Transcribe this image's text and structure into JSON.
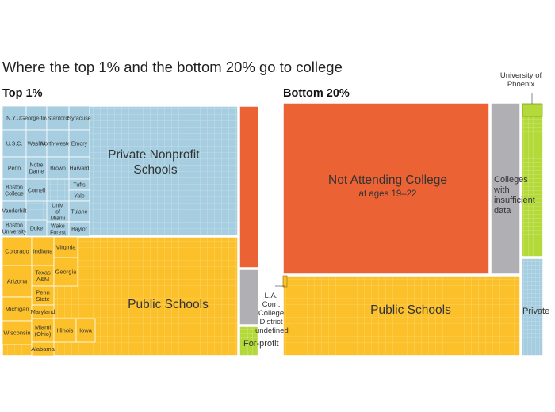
{
  "title": "Where the top 1% and the bottom 20% go to college",
  "chart_data": [
    {
      "type": "treemap",
      "panel": "Top 1%",
      "groups": [
        {
          "name": "Private Nonprofit Schools",
          "color": "#a6cee0",
          "labeled_schools": [
            "N.Y.U.",
            "George-town",
            "Stanford",
            "Syracuse",
            "U.S.C.",
            "WashU",
            "North-western",
            "Emory",
            "Penn",
            "Notre Dame",
            "Brown",
            "Harvard",
            "Boston College",
            "Cornell",
            "Tufts",
            "Yale",
            "Vanderbilt",
            "Univ. of Miami",
            "Tulane",
            "Boston University",
            "Duke",
            "Wake Forest",
            "Baylor"
          ]
        },
        {
          "name": "Public Schools",
          "color": "#fcc02a",
          "labeled_schools": [
            "Colorado",
            "Indiana",
            "Virginia",
            "Texas A&M",
            "Georgia",
            "Arizona",
            "Penn State",
            "Michigan",
            "Maryland",
            "Wisconsin",
            "Miami (Ohio)",
            "Illinois",
            "Iowa",
            "Alabama"
          ]
        },
        {
          "name": "",
          "color": "#eb6334",
          "note": ""
        },
        {
          "name": "",
          "color": "#b0b0b4",
          "note": ""
        },
        {
          "name": "For-profit",
          "color": "#b4d93a"
        }
      ]
    },
    {
      "type": "treemap",
      "panel": "Bottom 20%",
      "groups": [
        {
          "name": "Not Attending College",
          "subtitle": "at ages 19–22",
          "color": "#eb6334"
        },
        {
          "name": "Colleges with insufficient data",
          "color": "#b0b0b4"
        },
        {
          "name": "Public Schools",
          "color": "#fcc02a",
          "annotation": "L.A. Com. College District"
        },
        {
          "name": "",
          "color": "#b4d93a",
          "annotation": "University of Phoenix"
        },
        {
          "name": "Private",
          "color": "#a6cee0"
        }
      ]
    }
  ],
  "colors": {
    "private": "#a6cee0",
    "public": "#fcc02a",
    "not_attending": "#eb6334",
    "insufficient": "#b0b0b4",
    "forprofit": "#b4d93a"
  }
}
